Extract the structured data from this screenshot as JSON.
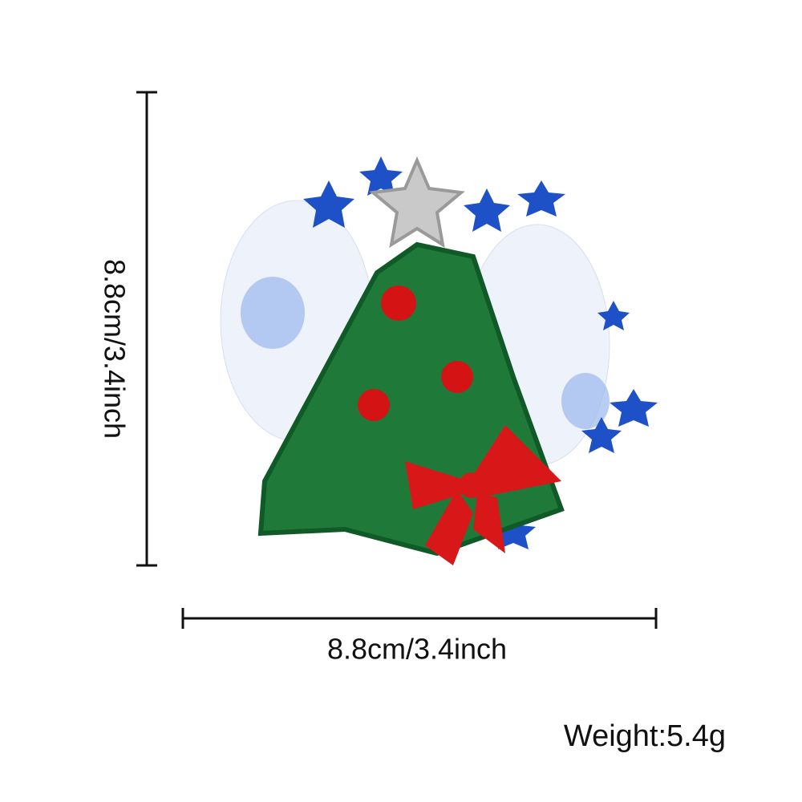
{
  "dimensions": {
    "height": "8.8cm/3.4inch",
    "width": "8.8cm/3.4inch"
  },
  "weight": "Weight:5.4g"
}
